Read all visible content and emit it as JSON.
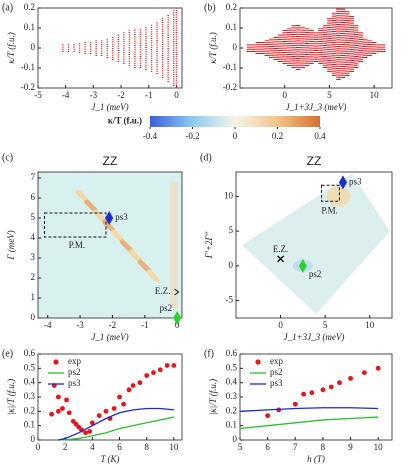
{
  "chart_data": [
    {
      "type": "range",
      "label": "(a)",
      "xlabel": "J_1 (meV)",
      "ylabel": "κ/T (f.u.)",
      "color": "#e8141b",
      "xlim": [
        -5,
        0.2
      ],
      "ylim": [
        -0.2,
        0.2
      ],
      "xticks": [
        -5,
        -4,
        -3,
        -2,
        -1,
        0
      ],
      "yticks": [
        -0.2,
        -0.1,
        0,
        0.1,
        0.2
      ],
      "x": [
        -4.1,
        -3.9,
        -3.7,
        -3.5,
        -3.3,
        -3.1,
        -2.9,
        -2.7,
        -2.5,
        -2.3,
        -2.1,
        -1.9,
        -1.7,
        -1.5,
        -1.3,
        -1.1,
        -0.9,
        -0.7,
        -0.5,
        -0.3,
        -0.1,
        0
      ],
      "high": [
        0.02,
        0.02,
        0.02,
        0.025,
        0.03,
        0.03,
        0.04,
        0.04,
        0.05,
        0.06,
        0.07,
        0.08,
        0.09,
        0.1,
        0.1,
        0.11,
        0.12,
        0.13,
        0.15,
        0.17,
        0.19,
        0.2
      ],
      "low": [
        -0.02,
        -0.02,
        -0.02,
        -0.025,
        -0.03,
        -0.03,
        -0.04,
        -0.04,
        -0.05,
        -0.06,
        -0.07,
        -0.08,
        -0.09,
        -0.1,
        -0.1,
        -0.11,
        -0.12,
        -0.13,
        -0.15,
        -0.17,
        -0.19,
        -0.2
      ]
    },
    {
      "type": "range",
      "label": "(b)",
      "xlabel": "J_1+3J_3 (meV)",
      "ylabel": "κ/T (f.u.)",
      "color": "#e8141b",
      "xlim": [
        -5,
        12
      ],
      "ylim": [
        -0.2,
        0.2
      ],
      "xticks": [
        0,
        5,
        10
      ],
      "yticks": [
        -0.2,
        -0.1,
        0,
        0.1,
        0.2
      ],
      "x": [
        -4,
        -3.5,
        -3,
        -2.5,
        -2,
        -1.5,
        -1,
        -0.5,
        0,
        0.5,
        1,
        1.5,
        2,
        2.5,
        3,
        3.5,
        4,
        4.5,
        5,
        5.5,
        6,
        6.5,
        7,
        7.5,
        8,
        8.5,
        9,
        9.5,
        10,
        10.5,
        11
      ],
      "high": [
        0.02,
        0.02,
        0.03,
        0.03,
        0.04,
        0.05,
        0.06,
        0.07,
        0.09,
        0.1,
        0.12,
        0.12,
        0.11,
        0.1,
        0.09,
        0.08,
        0.1,
        0.12,
        0.15,
        0.18,
        0.2,
        0.2,
        0.19,
        0.16,
        0.12,
        0.08,
        0.05,
        0.04,
        0.03,
        0.02,
        0.02
      ],
      "low": [
        -0.02,
        -0.02,
        -0.03,
        -0.03,
        -0.04,
        -0.05,
        -0.06,
        -0.07,
        -0.08,
        -0.09,
        -0.1,
        -0.11,
        -0.1,
        -0.09,
        -0.08,
        -0.07,
        -0.08,
        -0.1,
        -0.12,
        -0.14,
        -0.16,
        -0.15,
        -0.14,
        -0.12,
        -0.1,
        -0.07,
        -0.05,
        -0.04,
        -0.03,
        -0.02,
        -0.02
      ]
    },
    {
      "type": "colorbar",
      "title": "κ/T (f.u.)",
      "xlim": [
        -0.4,
        0.4
      ],
      "xticks": [
        -0.4,
        -0.2,
        0,
        0.2,
        0.4
      ],
      "colors": [
        "#3a5fd8",
        "#8fcaf0",
        "#f4f6e6",
        "#f1c58c",
        "#d8702a"
      ]
    },
    {
      "type": "map",
      "label": "(c)",
      "title": "ZZ",
      "xlabel": "J_1 (meV)",
      "ylabel": "Γ (meV)",
      "xlim": [
        -4.3,
        0.15
      ],
      "ylim": [
        0,
        7.3
      ],
      "xticks": [
        -4,
        -3,
        -2,
        -1,
        0
      ],
      "yticks": [
        0,
        1,
        2,
        3,
        4,
        5,
        6,
        7
      ],
      "points": [
        {
          "name": "ps3",
          "x": -2.1,
          "y": 5,
          "color": "#1c2ad6",
          "marker": "diamond"
        },
        {
          "name": "ps2",
          "x": 0,
          "y": 0,
          "color": "#2fd12f",
          "marker": "diamond"
        }
      ],
      "annotations": [
        {
          "text": "E.Z.",
          "x": -0.45,
          "y": 1.3
        },
        {
          "text": "P.M.",
          "x": -3.1,
          "y": 3.6
        }
      ],
      "region": {
        "x": [
          -4.1,
          -2.2
        ],
        "y": [
          4.05,
          5.25
        ]
      }
    },
    {
      "type": "map",
      "label": "(d)",
      "title": "ZZ",
      "xlabel": "J_1+3J_3 (meV)",
      "ylabel": "Γ′+2Γ″",
      "xlim": [
        -5,
        12.5
      ],
      "ylim": [
        -7.5,
        13.5
      ],
      "xticks": [
        0,
        5,
        10
      ],
      "yticks": [
        -5,
        0,
        5,
        10
      ],
      "points": [
        {
          "name": "ps3",
          "x": 7,
          "y": 12,
          "color": "#1c2ad6",
          "marker": "diamond"
        },
        {
          "name": "ps2",
          "x": 2.5,
          "y": 0,
          "color": "#2fd12f",
          "marker": "diamond"
        },
        {
          "name": "E.Z.",
          "x": 0,
          "y": 1,
          "color": "#111111",
          "marker": "x"
        }
      ],
      "annotations": [
        {
          "text": "P.M.",
          "x": 5.5,
          "y": 7.8
        }
      ],
      "region": {
        "x": [
          4.6,
          6.6
        ],
        "y": [
          9.3,
          11.6
        ]
      }
    },
    {
      "type": "xy",
      "label": "(e)",
      "xlabel": "T (K)",
      "ylabel": "|κ|/T (f.u.)",
      "legend": "upper left",
      "xlim": [
        0,
        10.6
      ],
      "ylim": [
        0,
        0.6
      ],
      "xticks": [
        0,
        2,
        4,
        6,
        8,
        10
      ],
      "yticks": [
        0,
        0.1,
        0.2,
        0.3,
        0.4,
        0.5,
        0.6
      ],
      "series": [
        {
          "name": "exp",
          "color": "#e8141b",
          "mode": "markers",
          "x": [
            1,
            1.2,
            1.5,
            1.5,
            1.8,
            2.1,
            2.3,
            2.6,
            2.8,
            3,
            3.2,
            3.5,
            3.8,
            4,
            4.5,
            5,
            5.3,
            5.6,
            6,
            6.3,
            6.7,
            7,
            7.5,
            8,
            8.5,
            9,
            9.5,
            10
          ],
          "y": [
            0.18,
            0.38,
            0.2,
            0.3,
            0.22,
            0.28,
            0.19,
            0.13,
            0.11,
            0.09,
            0.07,
            0.05,
            0.06,
            0.12,
            0.17,
            0.2,
            0.15,
            0.22,
            0.3,
            0.25,
            0.35,
            0.38,
            0.4,
            0.45,
            0.47,
            0.49,
            0.52,
            0.52
          ]
        },
        {
          "name": "ps2",
          "color": "#2fbf2f",
          "mode": "lines",
          "x": [
            1.5,
            2,
            3,
            4,
            5,
            6,
            7,
            8,
            9,
            10
          ],
          "y": [
            0,
            0.002,
            0.01,
            0.03,
            0.05,
            0.08,
            0.1,
            0.12,
            0.14,
            0.16
          ]
        },
        {
          "name": "ps3",
          "color": "#1c2ad6",
          "mode": "lines",
          "x": [
            1.5,
            2,
            3,
            4,
            5,
            6,
            7,
            8,
            9,
            10
          ],
          "y": [
            0,
            0.01,
            0.05,
            0.1,
            0.15,
            0.19,
            0.21,
            0.22,
            0.22,
            0.21
          ]
        }
      ]
    },
    {
      "type": "xy",
      "label": "(f)",
      "xlabel": "h (T)",
      "ylabel": "|κ|/T (f.u.)",
      "legend": "upper left",
      "xlim": [
        5,
        10.5
      ],
      "ylim": [
        0,
        0.6
      ],
      "xticks": [
        5,
        6,
        7,
        8,
        9,
        10
      ],
      "yticks": [
        0,
        0.1,
        0.2,
        0.3,
        0.4,
        0.5,
        0.6
      ],
      "series": [
        {
          "name": "exp",
          "color": "#e8141b",
          "mode": "markers",
          "x": [
            6,
            6.4,
            7,
            7.3,
            7.6,
            8,
            8.3,
            8.6,
            9,
            9.5,
            10
          ],
          "y": [
            0.17,
            0.21,
            0.25,
            0.32,
            0.33,
            0.35,
            0.37,
            0.4,
            0.43,
            0.47,
            0.5
          ]
        },
        {
          "name": "ps2",
          "color": "#2fbf2f",
          "mode": "lines",
          "x": [
            5,
            6,
            7,
            8,
            9,
            10
          ],
          "y": [
            0.08,
            0.1,
            0.12,
            0.14,
            0.15,
            0.16
          ]
        },
        {
          "name": "ps3",
          "color": "#1c2ad6",
          "mode": "lines",
          "x": [
            5,
            6,
            7,
            8,
            9,
            10
          ],
          "y": [
            0.2,
            0.21,
            0.22,
            0.225,
            0.225,
            0.22
          ]
        }
      ]
    }
  ]
}
